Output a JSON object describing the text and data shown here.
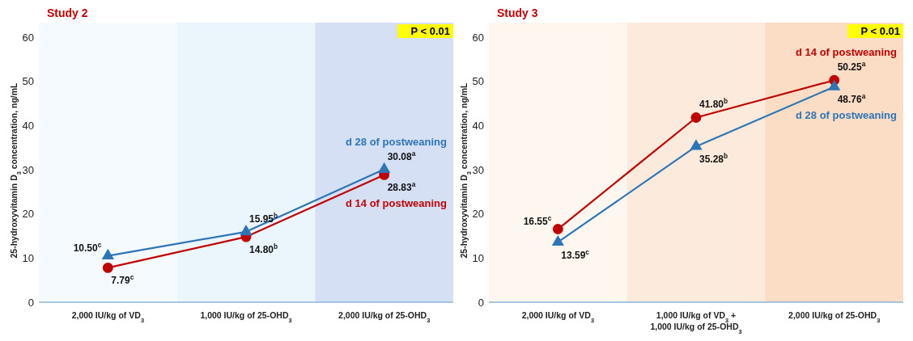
{
  "chart_data": [
    {
      "type": "line",
      "title": "Study 2",
      "ylabel": "25-hydroxyvitamin D$_{3}$ concentration, ng/mL",
      "categories": [
        "2,000 IU/kg of VD$_{3}$",
        "1,000 IU/kg of 25-OHD$_{3}$",
        "2,000 IU/kg of 25-OHD$_{3}$"
      ],
      "series": [
        {
          "name": "d 14 of postweaning",
          "color": "#c00000",
          "marker": "circle",
          "values": [
            7.79,
            14.8,
            28.83
          ],
          "value_labels": [
            "7.79$^{c}$",
            "14.80$^{b}$",
            "28.83$^{a}$"
          ]
        },
        {
          "name": "d 28 of postweaning",
          "color": "#2e75b6",
          "marker": "triangle",
          "values": [
            10.5,
            15.95,
            30.08
          ],
          "value_labels": [
            "10.50$^{c}$",
            "15.95$^{b}$",
            "30.08$^{a}$"
          ]
        }
      ],
      "ylim": [
        0,
        60
      ],
      "yticks": [
        0,
        10,
        20,
        30,
        40,
        50,
        60
      ],
      "grid": false,
      "bands": [
        {
          "axis": "x",
          "from": "2,000 IU/kg of VD$_{3}$",
          "to": "2,000 IU/kg of VD$_{3}$",
          "color": "#f5fafe"
        },
        {
          "axis": "x",
          "from": "1,000 IU/kg of 25-OHD$_{3}$",
          "to": "1,000 IU/kg of 25-OHD$_{3}$",
          "color": "#eaf5fc"
        },
        {
          "axis": "x",
          "from": "2,000 IU/kg of 25-OHD$_{3}$",
          "to": "2,000 IU/kg of 25-OHD$_{3}$",
          "color": "#d5e0f5"
        }
      ],
      "annotations": [
        "P < 0.01"
      ]
    },
    {
      "type": "line",
      "title": "Study 3",
      "ylabel": "25-hydroxyvitamin D$_{3}$ concentration, ng/mL",
      "categories": [
        "2,000 IU/kg of VD$_{3}$",
        "1,000 IU/kg of VD$_{3}$ +\n1,000 IU/kg of 25-OHD$_{3}$",
        "2,000 IU/kg of 25-OHD$_{3}$"
      ],
      "series": [
        {
          "name": "d 14 of postweaning",
          "color": "#c00000",
          "marker": "circle",
          "values": [
            16.55,
            41.8,
            50.25
          ],
          "value_labels": [
            "16.55$^{c}$",
            "41.80$^{b}$",
            "50.25$^{a}$"
          ]
        },
        {
          "name": "d 28 of postweaning",
          "color": "#2e75b6",
          "marker": "triangle",
          "values": [
            13.59,
            35.28,
            48.76
          ],
          "value_labels": [
            "13.59$^{c}$",
            "35.28$^{b}$",
            "48.76$^{a}$"
          ]
        }
      ],
      "ylim": [
        0,
        60
      ],
      "yticks": [
        0,
        10,
        20,
        30,
        40,
        50,
        60
      ],
      "grid": false,
      "bands": [
        {
          "axis": "x",
          "from": "2,000 IU/kg of VD$_{3}$",
          "to": "2,000 IU/kg of VD$_{3}$",
          "color": "#fdf7f0"
        },
        {
          "axis": "x",
          "from": "1,000 IU/kg of VD$_{3}$ +\n1,000 IU/kg of 25-OHD$_{3}$",
          "to": "1,000 IU/kg of VD$_{3}$ +\n1,000 IU/kg of 25-OHD$_{3}$",
          "color": "#fcebdc"
        },
        {
          "axis": "x",
          "from": "2,000 IU/kg of 25-OHD$_{3}$",
          "to": "2,000 IU/kg of 25-OHD$_{3}$",
          "color": "#fbdcc4"
        }
      ],
      "annotations": [
        "P < 0.01"
      ]
    }
  ]
}
